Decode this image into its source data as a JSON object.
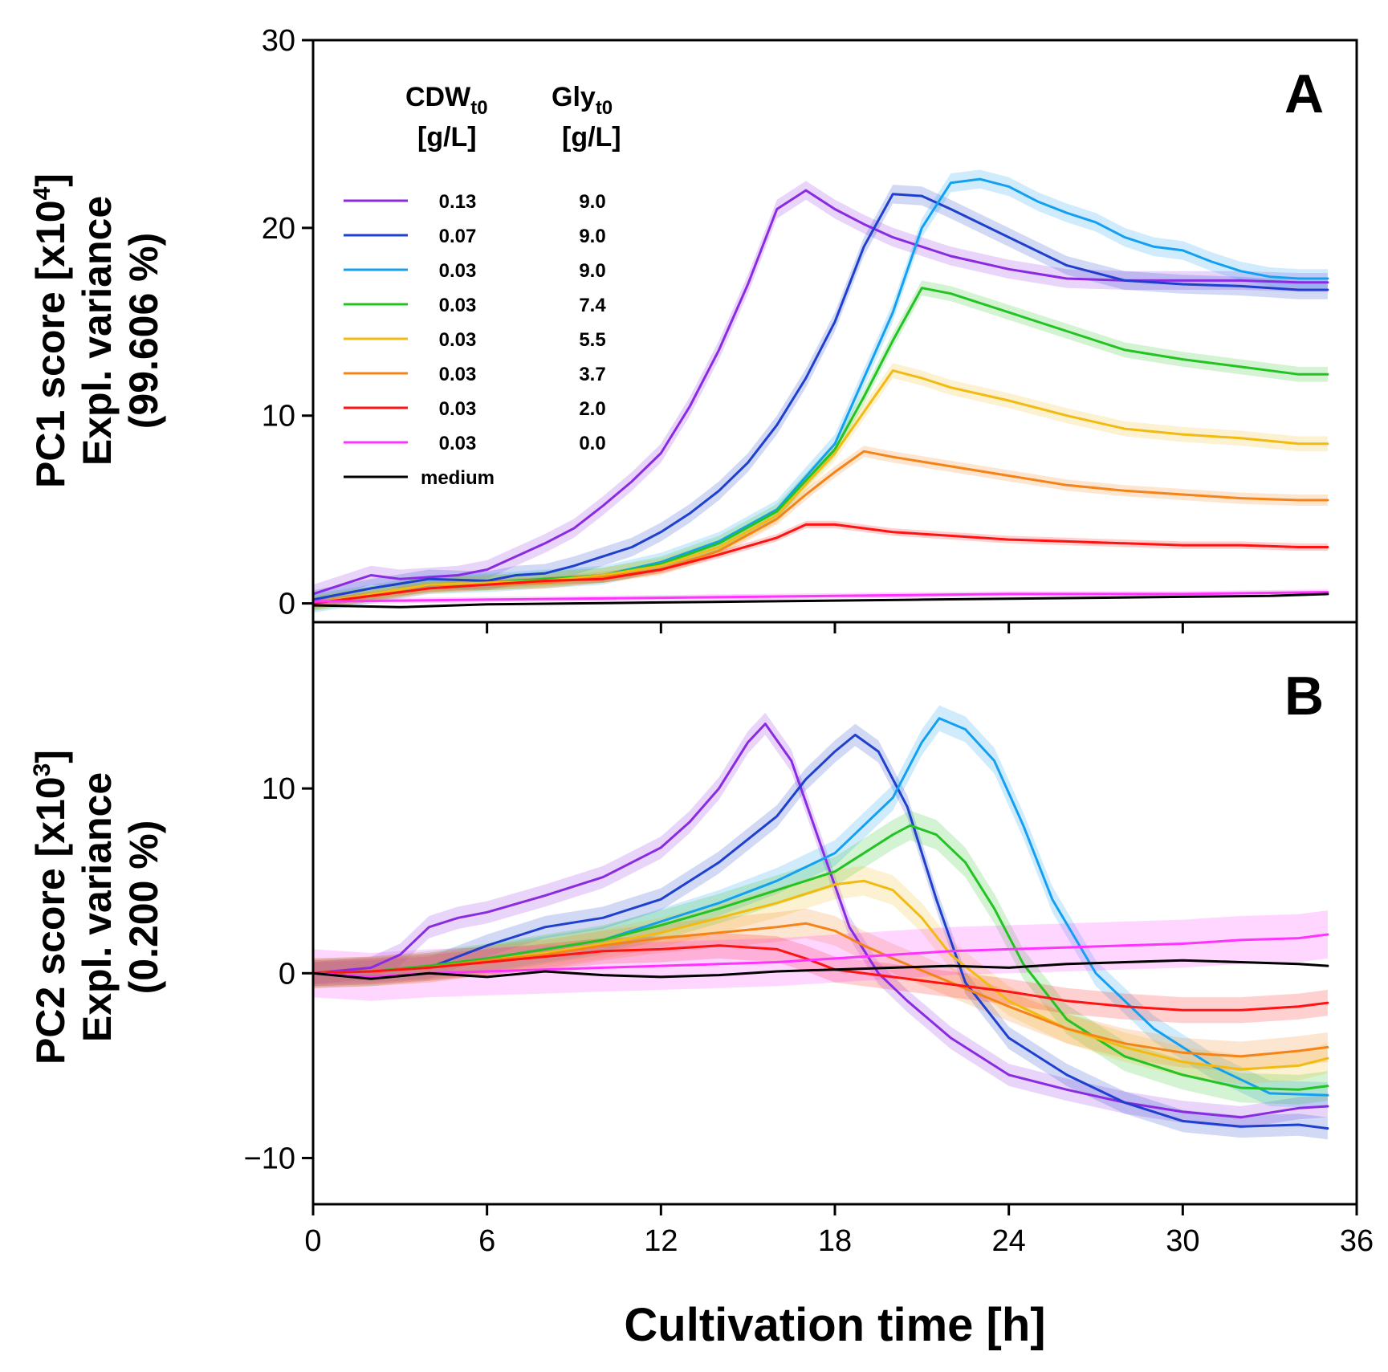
{
  "colors": {
    "c013_90": "#8a2be2",
    "c007_90": "#1f3fcf",
    "c003_90": "#14a0f0",
    "c003_74": "#22c322",
    "c003_55": "#f2bb12",
    "c003_37": "#f58418",
    "c003_20": "#ff1212",
    "c003_00": "#ff33ff",
    "medium": "#000000"
  },
  "chart_data": [
    {
      "type": "line",
      "panel_label": "A",
      "ylabel_line1": "PC1 score [x10",
      "ylabel_sup": "4",
      "ylabel_end": "]",
      "ylabel_line2": "Expl. variance",
      "ylabel_line3": "(99.606 %)",
      "ylim": [
        -1,
        30
      ],
      "yticks": [
        0,
        10,
        20,
        30
      ],
      "ytick_labels": [
        "0",
        "10",
        "20",
        "30"
      ],
      "xlim": [
        0,
        36
      ],
      "legend": {
        "placement": "top-left",
        "col1_head": "CDW",
        "col1_sub": "t0",
        "col1_unit": "[g/L]",
        "col2_head": "Gly",
        "col2_sub": "t0",
        "col2_unit": "[g/L]",
        "entries": [
          {
            "cdw": "0.13",
            "gly": "9.0",
            "color_key": "c013_90"
          },
          {
            "cdw": "0.07",
            "gly": "9.0",
            "color_key": "c007_90"
          },
          {
            "cdw": "0.03",
            "gly": "9.0",
            "color_key": "c003_90"
          },
          {
            "cdw": "0.03",
            "gly": "7.4",
            "color_key": "c003_74"
          },
          {
            "cdw": "0.03",
            "gly": "5.5",
            "color_key": "c003_55"
          },
          {
            "cdw": "0.03",
            "gly": "3.7",
            "color_key": "c003_37"
          },
          {
            "cdw": "0.03",
            "gly": "2.0",
            "color_key": "c003_20"
          },
          {
            "cdw": "0.03",
            "gly": "0.0",
            "color_key": "c003_00"
          },
          {
            "cdw": "medium",
            "gly": "",
            "color_key": "medium"
          }
        ]
      },
      "series": [
        {
          "name": "0.13 / 9.0",
          "color_key": "c013_90",
          "band": 0.5,
          "x": [
            0,
            1,
            2,
            3,
            4,
            5,
            6,
            7,
            8,
            9,
            10,
            11,
            12,
            13,
            14,
            15,
            16,
            17,
            18,
            19,
            20,
            22,
            24,
            26,
            28,
            30,
            32,
            34,
            35
          ],
          "y": [
            0.5,
            1.0,
            1.5,
            1.3,
            1.4,
            1.5,
            1.8,
            2.5,
            3.2,
            4.0,
            5.2,
            6.5,
            8.0,
            10.5,
            13.5,
            17.0,
            21.0,
            22.0,
            21.0,
            20.2,
            19.5,
            18.5,
            17.8,
            17.3,
            17.2,
            17.2,
            17.2,
            17.1,
            17.1
          ]
        },
        {
          "name": "0.07 / 9.0",
          "color_key": "c007_90",
          "band": 0.5,
          "x": [
            0,
            2,
            4,
            6,
            7,
            8,
            9,
            10,
            11,
            12,
            13,
            14,
            15,
            16,
            17,
            18,
            19,
            20,
            21,
            22,
            24,
            26,
            28,
            30,
            32,
            34,
            35
          ],
          "y": [
            0.2,
            0.8,
            1.3,
            1.2,
            1.5,
            1.6,
            2.0,
            2.5,
            3.0,
            3.8,
            4.8,
            6.0,
            7.5,
            9.5,
            12.0,
            15.0,
            19.0,
            21.8,
            21.7,
            21.0,
            19.5,
            18.0,
            17.2,
            17.0,
            16.9,
            16.7,
            16.7
          ]
        },
        {
          "name": "0.03 / 9.0",
          "color_key": "c003_90",
          "band": 0.5,
          "x": [
            0,
            2,
            4,
            6,
            8,
            10,
            12,
            14,
            16,
            18,
            19,
            20,
            21,
            22,
            23,
            24,
            25,
            26,
            27,
            28,
            29,
            30,
            31,
            32,
            33,
            34,
            35
          ],
          "y": [
            0,
            0.5,
            1.0,
            1.1,
            1.3,
            1.5,
            2.2,
            3.3,
            5.0,
            8.5,
            12.0,
            15.5,
            20.0,
            22.4,
            22.6,
            22.2,
            21.4,
            20.8,
            20.3,
            19.5,
            19.0,
            18.8,
            18.2,
            17.7,
            17.4,
            17.3,
            17.3
          ]
        },
        {
          "name": "0.03 / 7.4",
          "color_key": "c003_74",
          "band": 0.4,
          "x": [
            0,
            2,
            4,
            6,
            8,
            10,
            12,
            14,
            16,
            18,
            19,
            20,
            21,
            22,
            23,
            24,
            26,
            28,
            30,
            32,
            34,
            35
          ],
          "y": [
            0,
            0.5,
            1.0,
            1.1,
            1.3,
            1.5,
            2.1,
            3.2,
            4.9,
            8.2,
            11.0,
            14.0,
            16.8,
            16.5,
            16.0,
            15.5,
            14.5,
            13.5,
            13.0,
            12.6,
            12.2,
            12.2
          ]
        },
        {
          "name": "0.03 / 5.5",
          "color_key": "c003_55",
          "band": 0.4,
          "x": [
            0,
            2,
            4,
            6,
            8,
            10,
            12,
            14,
            16,
            18,
            19,
            20,
            21,
            22,
            24,
            26,
            28,
            30,
            32,
            34,
            35
          ],
          "y": [
            0,
            0.5,
            1.0,
            1.1,
            1.2,
            1.5,
            2.0,
            3.0,
            4.7,
            8.0,
            10.2,
            12.4,
            12.0,
            11.5,
            10.8,
            10.0,
            9.3,
            9.0,
            8.8,
            8.5,
            8.5
          ]
        },
        {
          "name": "0.03 / 3.7",
          "color_key": "c003_37",
          "band": 0.3,
          "x": [
            0,
            2,
            4,
            6,
            8,
            10,
            12,
            14,
            16,
            17,
            18,
            19,
            20,
            22,
            24,
            26,
            28,
            30,
            32,
            34,
            35
          ],
          "y": [
            0,
            0.4,
            0.8,
            1.0,
            1.1,
            1.4,
            1.8,
            2.8,
            4.5,
            5.8,
            7.0,
            8.1,
            7.8,
            7.3,
            6.8,
            6.3,
            6.0,
            5.8,
            5.6,
            5.5,
            5.5
          ]
        },
        {
          "name": "0.03 / 2.0",
          "color_key": "c003_20",
          "band": 0.2,
          "x": [
            0,
            2,
            4,
            6,
            8,
            10,
            12,
            14,
            16,
            17,
            18,
            20,
            22,
            24,
            26,
            28,
            30,
            32,
            34,
            35
          ],
          "y": [
            0,
            0.4,
            0.8,
            1.0,
            1.2,
            1.3,
            1.8,
            2.6,
            3.5,
            4.2,
            4.2,
            3.8,
            3.6,
            3.4,
            3.3,
            3.2,
            3.1,
            3.1,
            3.0,
            3.0
          ]
        },
        {
          "name": "0.03 / 0.0",
          "color_key": "c003_00",
          "band": 0.15,
          "x": [
            0,
            6,
            12,
            18,
            24,
            30,
            35
          ],
          "y": [
            0.1,
            0.2,
            0.3,
            0.4,
            0.5,
            0.5,
            0.6
          ]
        },
        {
          "name": "medium",
          "color_key": "medium",
          "band": 0,
          "x": [
            0,
            3,
            6,
            9,
            12,
            15,
            18,
            21,
            24,
            27,
            30,
            33,
            35
          ],
          "y": [
            -0.1,
            -0.2,
            -0.05,
            0.0,
            0.05,
            0.1,
            0.15,
            0.2,
            0.25,
            0.3,
            0.35,
            0.4,
            0.5
          ]
        }
      ]
    },
    {
      "type": "line",
      "panel_label": "B",
      "ylabel_line1": "PC2 score [x10",
      "ylabel_sup": "3",
      "ylabel_end": "]",
      "ylabel_line2": "Expl. variance",
      "ylabel_line3": "(0.200 %)",
      "ylim": [
        -12.5,
        19
      ],
      "yticks": [
        -10,
        0,
        10
      ],
      "ytick_labels": [
        "−10",
        "0",
        "10"
      ],
      "xlim": [
        0,
        36
      ],
      "xlabel": "Cultivation time   [h]",
      "xticks": [
        0,
        6,
        12,
        18,
        24,
        30,
        36
      ],
      "xtick_labels": [
        "0",
        "6",
        "12",
        "18",
        "24",
        "30",
        "36"
      ],
      "series": [
        {
          "name": "0.13 / 9.0",
          "color_key": "c013_90",
          "band": 0.6,
          "x": [
            0,
            2,
            3,
            4,
            5,
            6,
            8,
            10,
            12,
            13,
            14,
            15,
            15.6,
            16.5,
            17.5,
            18.5,
            19.5,
            20.5,
            22,
            24,
            26,
            28,
            30,
            32,
            34,
            35
          ],
          "y": [
            0,
            0.3,
            1.0,
            2.5,
            3.0,
            3.3,
            4.2,
            5.2,
            6.8,
            8.2,
            10.0,
            12.5,
            13.5,
            11.5,
            7.0,
            2.5,
            0.0,
            -1.5,
            -3.5,
            -5.5,
            -6.3,
            -7.0,
            -7.5,
            -7.8,
            -7.3,
            -7.2
          ]
        },
        {
          "name": "0.07 / 9.0",
          "color_key": "c007_90",
          "band": 0.6,
          "x": [
            0,
            2,
            4,
            6,
            8,
            10,
            12,
            14,
            16,
            17,
            18,
            18.7,
            19.5,
            20.5,
            21.5,
            22.5,
            24,
            26,
            28,
            30,
            32,
            34,
            35
          ],
          "y": [
            0,
            0.1,
            0.3,
            1.5,
            2.5,
            3.0,
            4.0,
            6.0,
            8.5,
            10.5,
            12.0,
            12.9,
            12.0,
            9.0,
            4.0,
            -0.5,
            -3.5,
            -5.5,
            -7.0,
            -8.0,
            -8.3,
            -8.2,
            -8.4
          ]
        },
        {
          "name": "0.03 / 9.0",
          "color_key": "c003_90",
          "band": 0.7,
          "x": [
            0,
            2,
            4,
            6,
            8,
            10,
            12,
            14,
            16,
            18,
            20,
            21,
            21.6,
            22.5,
            23.5,
            24.5,
            25.5,
            27,
            29,
            31,
            33,
            35
          ],
          "y": [
            0,
            0.1,
            0.4,
            0.8,
            1.3,
            1.8,
            2.8,
            3.8,
            5.0,
            6.5,
            9.5,
            12.5,
            13.8,
            13.2,
            11.5,
            8.0,
            4.0,
            0.0,
            -3.0,
            -5.0,
            -6.5,
            -6.6
          ]
        },
        {
          "name": "0.03 / 7.4",
          "color_key": "c003_74",
          "band": 0.8,
          "x": [
            0,
            2,
            4,
            6,
            8,
            10,
            12,
            14,
            16,
            18,
            19,
            20,
            20.6,
            21.5,
            22.5,
            23.5,
            24.5,
            26,
            28,
            30,
            32,
            34,
            35
          ],
          "y": [
            0,
            0.1,
            0.4,
            0.8,
            1.3,
            1.8,
            2.6,
            3.5,
            4.5,
            5.5,
            6.5,
            7.5,
            8.0,
            7.5,
            6.0,
            3.5,
            0.5,
            -2.5,
            -4.5,
            -5.5,
            -6.2,
            -6.3,
            -6.1
          ]
        },
        {
          "name": "0.03 / 5.5",
          "color_key": "c003_55",
          "band": 0.8,
          "x": [
            0,
            2,
            4,
            6,
            8,
            10,
            12,
            14,
            16,
            18,
            19,
            20,
            21,
            22,
            24,
            26,
            28,
            30,
            32,
            34,
            35
          ],
          "y": [
            0,
            0.1,
            0.3,
            0.7,
            1.1,
            1.6,
            2.2,
            3.0,
            3.8,
            4.8,
            5.0,
            4.5,
            3.0,
            1.0,
            -1.5,
            -3.0,
            -4.0,
            -4.8,
            -5.2,
            -5.0,
            -4.6
          ]
        },
        {
          "name": "0.03 / 3.7",
          "color_key": "c003_37",
          "band": 0.8,
          "x": [
            0,
            2,
            4,
            6,
            8,
            10,
            12,
            14,
            16,
            17,
            18,
            19,
            20,
            22,
            24,
            26,
            28,
            30,
            32,
            34,
            35
          ],
          "y": [
            0,
            0.1,
            0.3,
            0.7,
            1.0,
            1.5,
            1.9,
            2.2,
            2.5,
            2.7,
            2.3,
            1.5,
            0.8,
            -0.5,
            -1.8,
            -3.0,
            -3.8,
            -4.3,
            -4.5,
            -4.2,
            -4.0
          ]
        },
        {
          "name": "0.03 / 2.0",
          "color_key": "c003_20",
          "band": 0.7,
          "x": [
            0,
            2,
            4,
            6,
            8,
            10,
            12,
            14,
            16,
            17,
            18,
            20,
            22,
            24,
            26,
            28,
            30,
            32,
            34,
            35
          ],
          "y": [
            0,
            0.1,
            0.3,
            0.6,
            0.9,
            1.2,
            1.3,
            1.5,
            1.3,
            0.8,
            0.2,
            -0.2,
            -0.6,
            -1.0,
            -1.5,
            -1.8,
            -2.0,
            -2.0,
            -1.8,
            -1.6
          ]
        },
        {
          "name": "0.03 / 0.0",
          "color_key": "c003_00",
          "band": 1.3,
          "x": [
            0,
            2,
            4,
            6,
            8,
            10,
            12,
            14,
            16,
            18,
            20,
            22,
            24,
            26,
            28,
            30,
            32,
            34,
            35
          ],
          "y": [
            0,
            -0.2,
            0.0,
            0.1,
            0.2,
            0.3,
            0.4,
            0.5,
            0.6,
            0.8,
            1.0,
            1.2,
            1.3,
            1.4,
            1.5,
            1.6,
            1.8,
            1.9,
            2.1
          ]
        },
        {
          "name": "medium",
          "color_key": "medium",
          "band": 0,
          "x": [
            0,
            2,
            4,
            6,
            8,
            10,
            12,
            14,
            16,
            18,
            20,
            22,
            24,
            26,
            28,
            30,
            32,
            34,
            35
          ],
          "y": [
            0,
            -0.3,
            0.0,
            -0.2,
            0.1,
            -0.1,
            -0.2,
            -0.1,
            0.1,
            0.2,
            0.3,
            0.4,
            0.3,
            0.5,
            0.6,
            0.7,
            0.6,
            0.5,
            0.4
          ]
        }
      ]
    }
  ]
}
